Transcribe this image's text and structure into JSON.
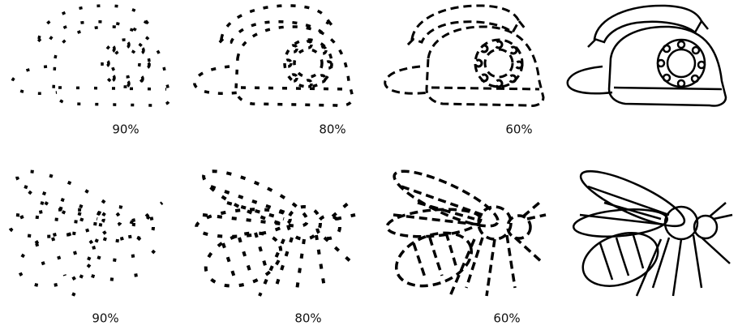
{
  "rows": [
    {
      "panels": [
        {
          "label": "90%"
        },
        {
          "label": "80%"
        },
        {
          "label": "60%"
        }
      ]
    },
    {
      "panels": [
        {
          "label": "90%"
        },
        {
          "label": "80%"
        },
        {
          "label": "60%"
        }
      ]
    }
  ]
}
